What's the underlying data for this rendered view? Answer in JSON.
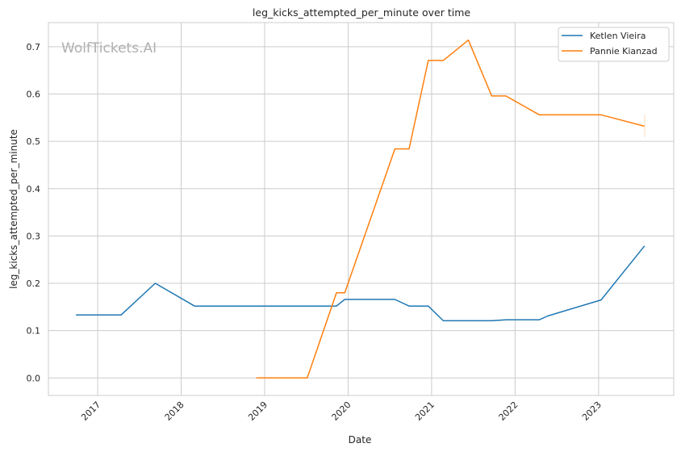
{
  "chart_data": {
    "type": "line",
    "title": "leg_kicks_attempted_per_minute over time",
    "xlabel": "Date",
    "ylabel": "leg_kicks_attempted_per_minute",
    "watermark": "WolfTickets.AI",
    "xlim": [
      2016.41,
      2023.9
    ],
    "ylim": [
      -0.037,
      0.751
    ],
    "grid": true,
    "legend_position": "top-right",
    "x_ticks": [
      {
        "value": 2017,
        "label": "2017"
      },
      {
        "value": 2018,
        "label": "2018"
      },
      {
        "value": 2019,
        "label": "2019"
      },
      {
        "value": 2020,
        "label": "2020"
      },
      {
        "value": 2021,
        "label": "2021"
      },
      {
        "value": 2022,
        "label": "2022"
      },
      {
        "value": 2023,
        "label": "2023"
      }
    ],
    "y_ticks": [
      {
        "value": 0.0,
        "label": "0.0"
      },
      {
        "value": 0.1,
        "label": "0.1"
      },
      {
        "value": 0.2,
        "label": "0.2"
      },
      {
        "value": 0.3,
        "label": "0.3"
      },
      {
        "value": 0.4,
        "label": "0.4"
      },
      {
        "value": 0.5,
        "label": "0.5"
      },
      {
        "value": 0.6,
        "label": "0.6"
      },
      {
        "value": 0.7,
        "label": "0.7"
      }
    ],
    "series": [
      {
        "name": "Ketlen Vieira",
        "color": "#1f77b4",
        "x": [
          2016.74,
          2017.28,
          2017.69,
          2018.16,
          2019.86,
          2019.96,
          2020.56,
          2020.73,
          2020.96,
          2021.14,
          2021.72,
          2021.89,
          2022.29,
          2022.39,
          2023.03,
          2023.55
        ],
        "y": [
          0.133,
          0.133,
          0.2,
          0.152,
          0.152,
          0.166,
          0.166,
          0.152,
          0.152,
          0.121,
          0.121,
          0.123,
          0.123,
          0.131,
          0.165,
          0.279
        ]
      },
      {
        "name": "Pannie Kianzad",
        "color": "#ff7f0e",
        "x": [
          2018.9,
          2019.51,
          2019.86,
          2019.96,
          2020.56,
          2020.73,
          2020.96,
          2021.14,
          2021.44,
          2021.72,
          2021.89,
          2022.29,
          2023.03,
          2023.55
        ],
        "y": [
          0.0,
          0.0,
          0.18,
          0.18,
          0.484,
          0.484,
          0.671,
          0.671,
          0.714,
          0.596,
          0.596,
          0.556,
          0.556,
          0.532
        ]
      }
    ]
  }
}
